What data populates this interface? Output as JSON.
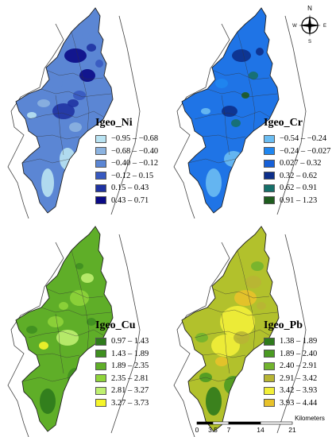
{
  "compass": {
    "north": "N",
    "south": "S",
    "east": "E",
    "west": "W"
  },
  "maps": [
    {
      "id": "ni",
      "title": "Igeo_Ni",
      "base_color": "#5b86d4",
      "legend": [
        {
          "label": "−0.95 – −0.68",
          "color": "#b9e3f2"
        },
        {
          "label": "−0.68 – −0.40",
          "color": "#8cb3e0"
        },
        {
          "label": "−0.40 – −0.12",
          "color": "#5b86d4"
        },
        {
          "label": "−0.12 – 0.15",
          "color": "#3759c0"
        },
        {
          "label": "0.15 – 0.43",
          "color": "#1f33a2"
        },
        {
          "label": "0.43 – 0.71",
          "color": "#0a0a86"
        }
      ]
    },
    {
      "id": "cr",
      "title": "Igeo_Cr",
      "base_color": "#1f74e6",
      "legend": [
        {
          "label": "−0.54 – −0.24",
          "color": "#6bbdf2"
        },
        {
          "label": "−0.24 – −0.027",
          "color": "#1f86f0"
        },
        {
          "label": "0.027 – 0.32",
          "color": "#1660d8"
        },
        {
          "label": "0.32 – 0.62",
          "color": "#0c2f8a"
        },
        {
          "label": "0.62 – 0.91",
          "color": "#16706a"
        },
        {
          "label": "0.91 – 1.23",
          "color": "#1e5c1e"
        }
      ]
    },
    {
      "id": "cu",
      "title": "Igeo_Cu",
      "base_color": "#5fae28",
      "legend": [
        {
          "label": "0.97 – 1.43",
          "color": "#2e7a1c"
        },
        {
          "label": "1.43 – 1.89",
          "color": "#3f8f20"
        },
        {
          "label": "1.89 – 2.35",
          "color": "#5fae28"
        },
        {
          "label": "2.35 – 2.81",
          "color": "#8fd43a"
        },
        {
          "label": "2.81 – 3.27",
          "color": "#bff070"
        },
        {
          "label": "3.27 – 3.73",
          "color": "#f5f52a"
        }
      ]
    },
    {
      "id": "pb",
      "title": "Igeo_Pb",
      "base_color": "#b2c12c",
      "legend": [
        {
          "label": "1.38 – 1.89",
          "color": "#2e7a1c"
        },
        {
          "label": "1.89 – 2.40",
          "color": "#4a9a22"
        },
        {
          "label": "2.40 – 2.91",
          "color": "#72b42e"
        },
        {
          "label": "2.91 – 3.42",
          "color": "#b8b534"
        },
        {
          "label": "3.42 – 3.93",
          "color": "#f2ef38"
        },
        {
          "label": "3.93 – 4.44",
          "color": "#e8c22a"
        }
      ]
    }
  ],
  "scale": {
    "unit": "Kilometers",
    "ticks": [
      "0",
      "3.5",
      "7",
      "14",
      "21"
    ],
    "tick_values": [
      0,
      3.5,
      7,
      14,
      21
    ]
  }
}
